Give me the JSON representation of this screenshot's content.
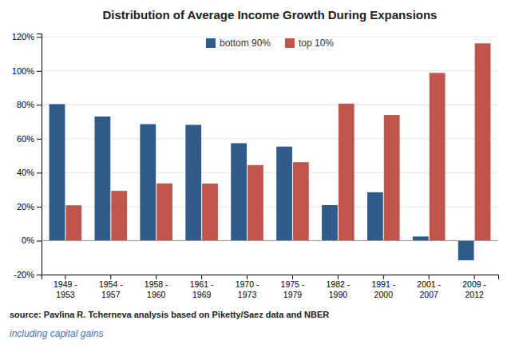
{
  "chart_data": {
    "type": "bar",
    "title": "Distribution of Average Income Growth During Expansions",
    "categories": [
      "1949 -\n1953",
      "1954 -\n1957",
      "1958 -\n1960",
      "1961 -\n1969",
      "1970 -\n1973",
      "1975 -\n1979",
      "1982 -\n1990",
      "1991 -\n2000",
      "2001 -\n2007",
      "2009 -\n2012"
    ],
    "series": [
      {
        "name": "bottom 90%",
        "color": "#2e5b8a",
        "values": [
          0.804,
          0.731,
          0.686,
          0.682,
          0.574,
          0.554,
          0.209,
          0.285,
          0.024,
          -0.116
        ]
      },
      {
        "name": "top 10%",
        "color": "#c0564b",
        "values": [
          0.208,
          0.293,
          0.337,
          0.336,
          0.445,
          0.462,
          0.807,
          0.74,
          0.988,
          1.162
        ]
      }
    ],
    "ylim": [
      -0.2,
      1.22
    ],
    "yticks": [
      {
        "value": -0.2,
        "label": "-20%"
      },
      {
        "value": 0.0,
        "label": "0%"
      },
      {
        "value": 0.2,
        "label": "20%"
      },
      {
        "value": 0.4,
        "label": "40%"
      },
      {
        "value": 0.6,
        "label": "60%"
      },
      {
        "value": 0.8,
        "label": "80%"
      },
      {
        "value": 1.0,
        "label": "100%"
      },
      {
        "value": 1.2,
        "label": "120%"
      }
    ],
    "grid": true,
    "legend": "upper center",
    "annotations": [
      {
        "text": "source: Pavlina R. Tcherneva analysis based on Piketty/Saez data and NBER"
      },
      {
        "text": "including capital gains",
        "color": "#4472c4"
      }
    ]
  }
}
